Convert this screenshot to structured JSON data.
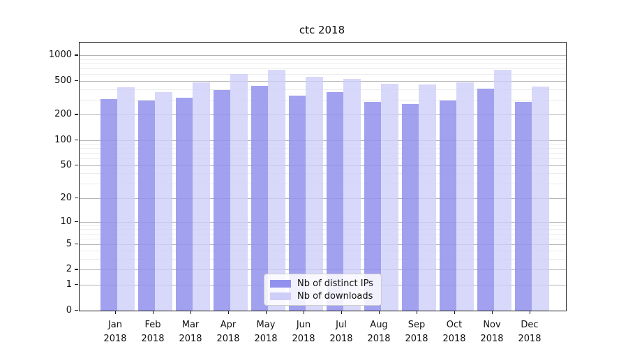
{
  "title": "ctc 2018",
  "colors": {
    "bar_distinct_ips": "#9292ee",
    "bar_downloads": "#cecef9",
    "grid_major": "#b4b4b4",
    "grid_minor": "#ececec",
    "axis": "#1a1a1a",
    "text": "#111111",
    "legend_border": "#cccccc"
  },
  "legend": {
    "entries": [
      "Nb of distinct IPs",
      "Nb of downloads"
    ],
    "position": "lower center"
  },
  "chart_data": {
    "type": "bar",
    "title": "ctc 2018",
    "xlabel": "",
    "ylabel": "",
    "yscale": "log1p",
    "ylim": [
      0,
      1430
    ],
    "grid": true,
    "legend_position": "lower center",
    "categories": [
      {
        "month": "Jan",
        "year": "2018"
      },
      {
        "month": "Feb",
        "year": "2018"
      },
      {
        "month": "Mar",
        "year": "2018"
      },
      {
        "month": "Apr",
        "year": "2018"
      },
      {
        "month": "May",
        "year": "2018"
      },
      {
        "month": "Jun",
        "year": "2018"
      },
      {
        "month": "Jul",
        "year": "2018"
      },
      {
        "month": "Aug",
        "year": "2018"
      },
      {
        "month": "Sep",
        "year": "2018"
      },
      {
        "month": "Oct",
        "year": "2018"
      },
      {
        "month": "Nov",
        "year": "2018"
      },
      {
        "month": "Dec",
        "year": "2018"
      }
    ],
    "series": [
      {
        "name": "Nb of distinct IPs",
        "color": "#9292ee",
        "values": [
          310,
          296,
          323,
          398,
          446,
          342,
          369,
          286,
          268,
          294,
          411,
          283
        ]
      },
      {
        "name": "Nb of downloads",
        "color": "#cecef9",
        "values": [
          423,
          376,
          490,
          607,
          683,
          562,
          537,
          466,
          462,
          487,
          683,
          436
        ]
      }
    ],
    "yticks_major": [
      0,
      1,
      2,
      5,
      10,
      20,
      50,
      100,
      200,
      500,
      1000
    ],
    "yticks_minor": [
      3,
      4,
      6,
      7,
      8,
      9,
      30,
      40,
      60,
      70,
      80,
      90,
      300,
      400,
      600,
      700,
      800,
      900
    ]
  }
}
